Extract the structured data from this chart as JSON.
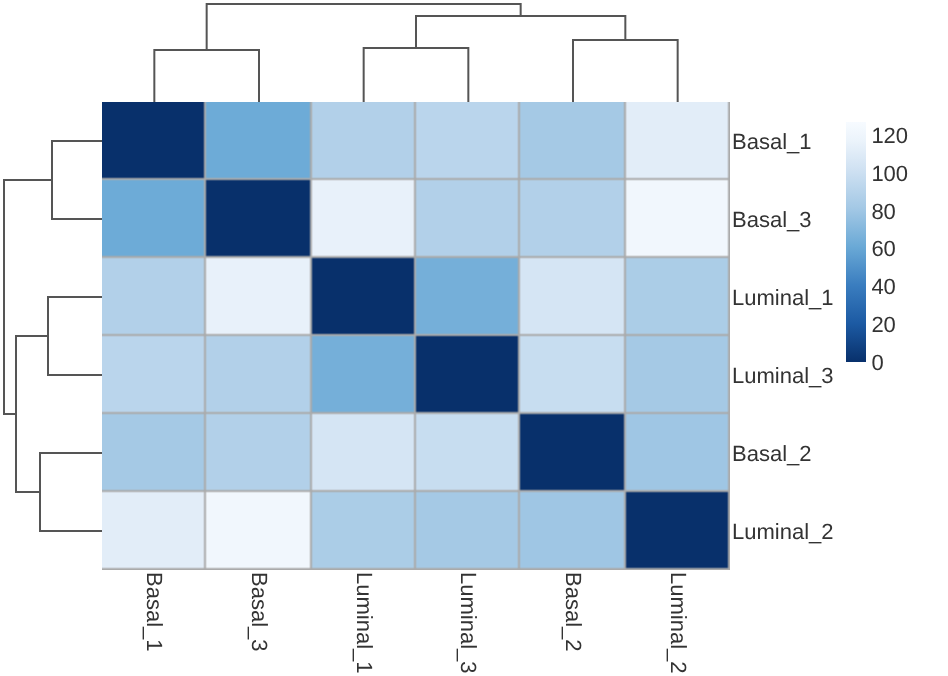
{
  "chart_data": {
    "type": "heatmap",
    "categories": [
      "Basal_1",
      "Basal_3",
      "Luminal_1",
      "Luminal_3",
      "Basal_2",
      "Luminal_2"
    ],
    "y_categories": [
      "Basal_1",
      "Basal_3",
      "Luminal_1",
      "Luminal_3",
      "Basal_2",
      "Luminal_2"
    ],
    "cells": [
      [
        0,
        62,
        88,
        92,
        82,
        112
      ],
      [
        62,
        0,
        115,
        88,
        88,
        122
      ],
      [
        88,
        115,
        0,
        65,
        105,
        85
      ],
      [
        92,
        88,
        65,
        0,
        98,
        82
      ],
      [
        82,
        88,
        105,
        98,
        0,
        80
      ],
      [
        112,
        122,
        85,
        82,
        80,
        0
      ]
    ],
    "clim": [
      0,
      127
    ],
    "cticks": [
      0,
      20,
      40,
      60,
      80,
      100,
      120
    ]
  }
}
